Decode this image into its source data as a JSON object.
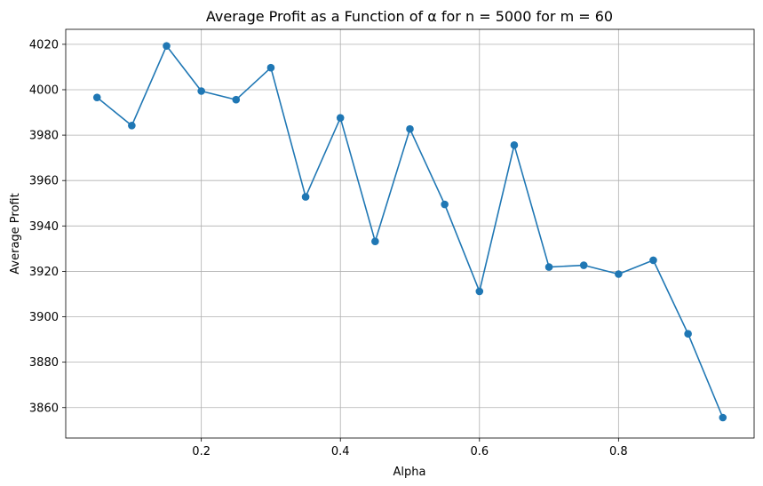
{
  "chart_data": {
    "type": "line",
    "title": "Average Profit as a Function of α for n = 5000 for m = 60",
    "xlabel": "Alpha",
    "ylabel": "Average Profit",
    "xlim": [
      0.005,
      0.995
    ],
    "ylim": [
      3846.6,
      4026.6
    ],
    "xticks": [
      0.2,
      0.4,
      0.6,
      0.8
    ],
    "xtick_labels": [
      "0.2",
      "0.4",
      "0.6",
      "0.8"
    ],
    "yticks": [
      3860,
      3880,
      3900,
      3920,
      3940,
      3960,
      3980,
      4000,
      4020
    ],
    "ytick_labels": [
      "3860",
      "3880",
      "3900",
      "3920",
      "3940",
      "3960",
      "3980",
      "4000",
      "4020"
    ],
    "grid": true,
    "color": "#1f77b4",
    "marker": "circle",
    "series": [
      {
        "x": [
          0.05,
          0.1,
          0.15,
          0.2,
          0.25,
          0.3,
          0.35,
          0.4,
          0.45,
          0.5,
          0.55,
          0.6,
          0.65,
          0.7,
          0.75,
          0.8,
          0.85,
          0.9,
          0.95
        ],
        "values": [
          3996.6,
          3984.2,
          4019.3,
          3999.4,
          3995.6,
          4009.7,
          3952.8,
          3987.6,
          3933.2,
          3982.7,
          3949.5,
          3911.2,
          3975.6,
          3921.9,
          3922.7,
          3918.8,
          3924.9,
          3892.5,
          3855.6
        ]
      }
    ]
  }
}
